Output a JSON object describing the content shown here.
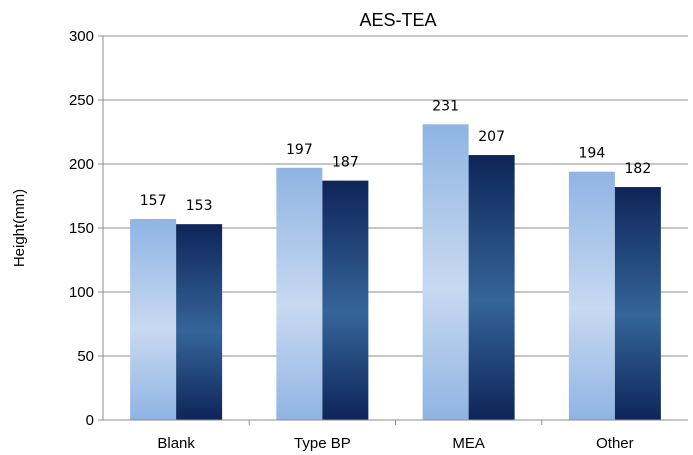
{
  "chart_data": {
    "type": "bar",
    "title": "AES-TEA",
    "xlabel": "",
    "ylabel": "Height(mm)",
    "categories": [
      "Blank",
      "Type BP",
      "MEA",
      "Other"
    ],
    "series": [
      {
        "values": [
          157,
          197,
          231,
          194
        ],
        "color": "#8FB4E3"
      },
      {
        "values": [
          153,
          187,
          207,
          182
        ],
        "color": "#10285E"
      }
    ],
    "ylim": [
      0,
      300
    ],
    "yticks": [
      0,
      50,
      100,
      150,
      200,
      250,
      300
    ],
    "grid": true,
    "legend": "none",
    "data_labels": true
  }
}
